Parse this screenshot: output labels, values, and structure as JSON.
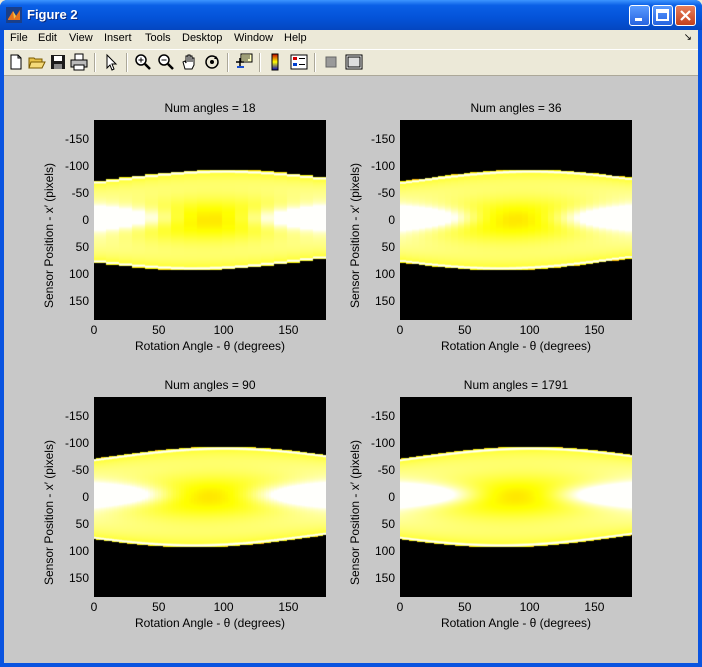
{
  "window": {
    "title": "Figure 2"
  },
  "menu": [
    "File",
    "Edit",
    "View",
    "Insert",
    "Tools",
    "Desktop",
    "Window",
    "Help"
  ],
  "toolbar": [
    "new-file",
    "open-folder",
    "save",
    "print",
    "pointer",
    "zoom-in",
    "zoom-out",
    "pan",
    "rotate-3d",
    "data-cursor",
    "colorbar",
    "legend",
    "hide-plot-tools",
    "show-plot-tools"
  ],
  "colors": {
    "accent": "#0a54e0",
    "plot_bg": "#000000",
    "figure_bg": "#c8c8c8"
  },
  "xlabel": "Rotation Angle - θ (degrees)",
  "ylabel": "Sensor Position - x′ (pixels)",
  "chart_data": [
    {
      "type": "heatmap",
      "title": "Num angles = 18",
      "xlabel": "Rotation Angle - θ (degrees)",
      "ylabel": "Sensor Position - x′ (pixels)",
      "xticks": [
        "0",
        "50",
        "100",
        "150"
      ],
      "yticks": [
        "-150",
        "-100",
        "-50",
        "0",
        "50",
        "100",
        "150"
      ],
      "xlim": [
        0,
        179
      ],
      "ylim": [
        -185,
        185
      ],
      "colormap": "hot"
    },
    {
      "type": "heatmap",
      "title": "Num angles = 36",
      "xlabel": "Rotation Angle - θ (degrees)",
      "ylabel": "Sensor Position - x′ (pixels)",
      "xticks": [
        "0",
        "50",
        "100",
        "150"
      ],
      "yticks": [
        "-150",
        "-100",
        "-50",
        "0",
        "50",
        "100",
        "150"
      ],
      "xlim": [
        0,
        179
      ],
      "ylim": [
        -185,
        185
      ],
      "colormap": "hot"
    },
    {
      "type": "heatmap",
      "title": "Num angles = 90",
      "xlabel": "Rotation Angle - θ (degrees)",
      "ylabel": "Sensor Position - x′ (pixels)",
      "xticks": [
        "0",
        "50",
        "100",
        "150"
      ],
      "yticks": [
        "-150",
        "-100",
        "-50",
        "0",
        "50",
        "100",
        "150"
      ],
      "xlim": [
        0,
        179
      ],
      "ylim": [
        -185,
        185
      ],
      "colormap": "hot"
    },
    {
      "type": "heatmap",
      "title": "Num angles = 1791",
      "xlabel": "Rotation Angle - θ (degrees)",
      "ylabel": "Sensor Position - x′ (pixels)",
      "xticks": [
        "0",
        "50",
        "100",
        "150"
      ],
      "yticks": [
        "-150",
        "-100",
        "-50",
        "0",
        "50",
        "100",
        "150"
      ],
      "xlim": [
        0,
        179
      ],
      "ylim": [
        -185,
        185
      ],
      "colormap": "hot"
    }
  ]
}
